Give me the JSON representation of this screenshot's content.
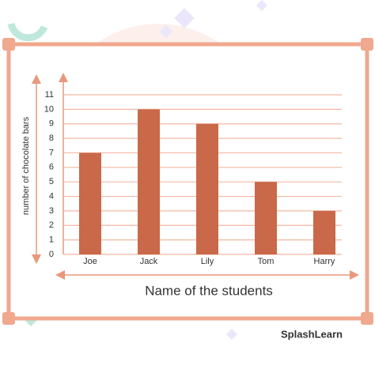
{
  "chart_data": {
    "type": "bar",
    "y_label": "number of chocolate bars",
    "x_label": "Name of the students",
    "categories": [
      "Joe",
      "Jack",
      "Lily",
      "Tom",
      "Harry"
    ],
    "values": [
      7,
      10,
      9,
      5,
      3
    ],
    "color": "#c9694a",
    "ylim": [
      0,
      11
    ],
    "yticks": [
      0,
      1,
      2,
      3,
      4,
      5,
      6,
      7,
      8,
      9,
      10,
      11
    ],
    "grid": true,
    "credit": "SplashLearn"
  }
}
